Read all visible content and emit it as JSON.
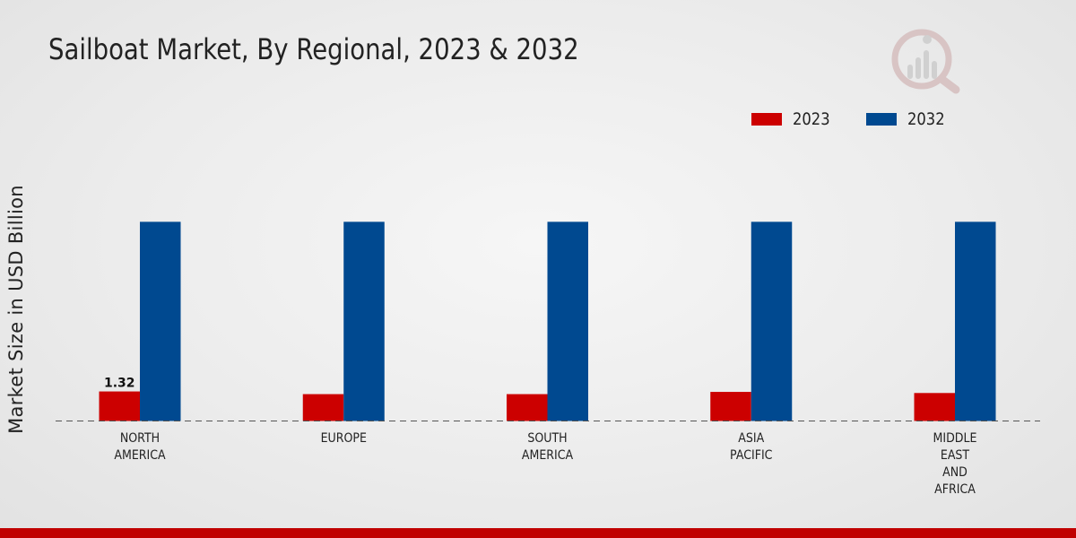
{
  "title": "Sailboat Market, By Regional, 2023 & 2032",
  "logo_icon": "market-research-logo-icon",
  "chart_data": {
    "type": "bar",
    "title": "Sailboat Market, By Regional, 2023 & 2032",
    "xlabel": "",
    "ylabel": "Market Size in USD Billion",
    "categories": [
      [
        "NORTH",
        "AMERICA"
      ],
      [
        "EUROPE"
      ],
      [
        "SOUTH",
        "AMERICA"
      ],
      [
        "ASIA",
        "PACIFIC"
      ],
      [
        "MIDDLE",
        "EAST",
        "AND",
        "AFRICA"
      ]
    ],
    "series": [
      {
        "name": "2023",
        "color": "#cc0000",
        "values": [
          1.32,
          1.2,
          1.2,
          1.3,
          1.25
        ]
      },
      {
        "name": "2032",
        "color": "#004990",
        "values": [
          8.9,
          8.9,
          8.9,
          8.9,
          8.9
        ]
      }
    ],
    "data_labels": [
      {
        "series": 0,
        "index": 0,
        "text": "1.32"
      }
    ],
    "ylim": [
      0,
      12
    ],
    "grid": false,
    "legend": "top-right",
    "baseline_style": "dashed"
  }
}
